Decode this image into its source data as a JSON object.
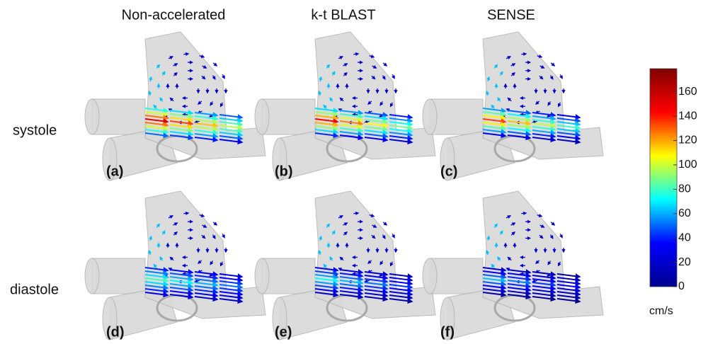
{
  "columns": [
    "Non-accelerated",
    "k-t BLAST",
    "SENSE"
  ],
  "rows": [
    "systole",
    "diastole"
  ],
  "panels": [
    "(a)",
    "(b)",
    "(c)",
    "(d)",
    "(e)",
    "(f)"
  ],
  "colorbar": {
    "lim": [
      0,
      179
    ],
    "ticks": [
      0,
      20,
      40,
      60,
      80,
      100,
      120,
      140,
      160
    ],
    "unit": "cm/s",
    "colors": [
      "#00008f",
      "#0000ff",
      "#00ffff",
      "#ffff00",
      "#ff0000",
      "#800000"
    ]
  }
}
